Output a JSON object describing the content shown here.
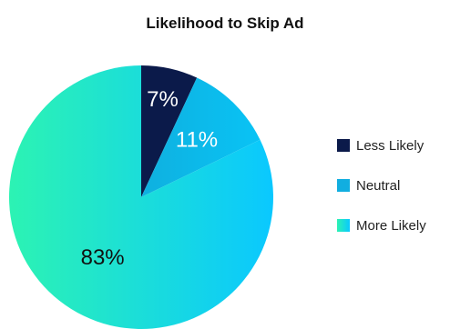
{
  "chart_data": {
    "type": "pie",
    "title": "Likelihood to Skip Ad",
    "categories": [
      "Less Likely",
      "Neutral",
      "More Likely"
    ],
    "values": [
      7,
      11,
      83
    ],
    "labels": [
      "7%",
      "11%",
      "83%"
    ],
    "colors": [
      "#0b1a4a",
      "#11aee0",
      "#22e6c7"
    ],
    "legend_position": "right"
  }
}
